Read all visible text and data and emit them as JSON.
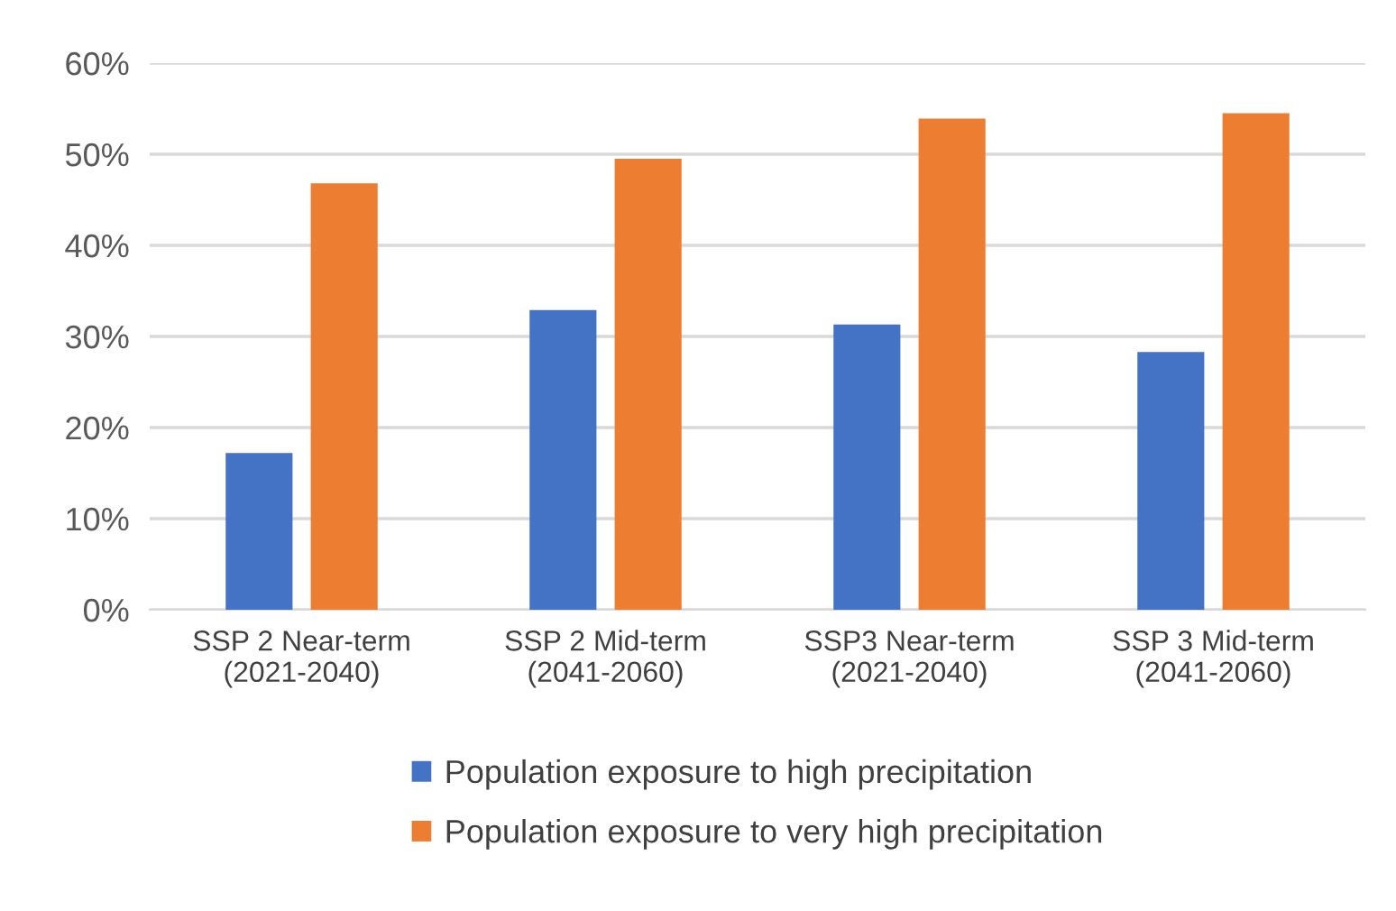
{
  "chart_data": {
    "type": "bar",
    "categories": [
      "SSP 2 Near-term\n(2021-2040)",
      "SSP 2 Mid-term\n(2041-2060)",
      "SSP3 Near-term\n(2021-2040)",
      "SSP 3 Mid-term\n(2041-2060)"
    ],
    "series": [
      {
        "name": "Population exposure to high precipitation",
        "color": "#4472c4",
        "values": [
          17.2,
          32.9,
          31.3,
          28.3
        ]
      },
      {
        "name": "Population exposure to very high precipitation",
        "color": "#ed7d31",
        "values": [
          46.8,
          49.5,
          53.9,
          54.5
        ]
      }
    ],
    "ylim": [
      0,
      60
    ],
    "yticks": [
      {
        "value": 0,
        "label": "0%"
      },
      {
        "value": 10,
        "label": "10%"
      },
      {
        "value": 20,
        "label": "20%"
      },
      {
        "value": 30,
        "label": "30%"
      },
      {
        "value": 40,
        "label": "40%"
      },
      {
        "value": 50,
        "label": "50%"
      },
      {
        "value": 60,
        "label": "60%"
      }
    ],
    "grid": "y",
    "legend": "bottom"
  }
}
